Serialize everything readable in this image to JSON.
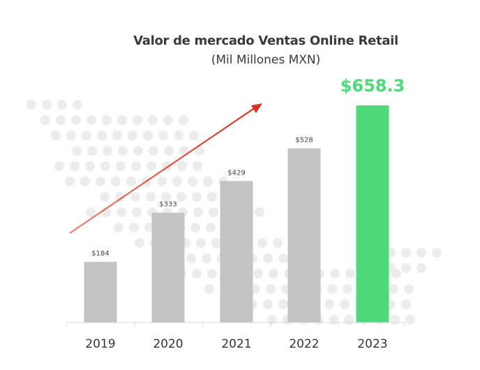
{
  "chart_data": {
    "type": "bar",
    "title": "Valor de mercado Ventas Online Retail",
    "subtitle": "(Mil Millones MXN)",
    "categories": [
      "2019",
      "2020",
      "2021",
      "2022",
      "2023"
    ],
    "values": [
      184,
      333,
      429,
      528,
      658.3
    ],
    "value_labels": [
      "$184",
      "$333",
      "$429",
      "$528",
      "$658.3"
    ],
    "highlight_index": 4,
    "colors": {
      "bar": "#c3c3c3",
      "highlight": "#4fd97a",
      "arrow": "#d63020",
      "dots": "#ececec"
    },
    "ylim": [
      0,
      700
    ],
    "xlabel": "",
    "ylabel": ""
  }
}
